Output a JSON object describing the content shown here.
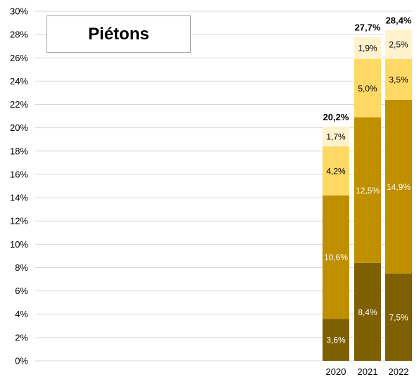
{
  "chart_data": {
    "type": "bar",
    "stacked": true,
    "title": "Piétons",
    "categories": [
      "2020",
      "2021",
      "2022"
    ],
    "series": [
      {
        "values": [
          3.6,
          8.4,
          7.5
        ],
        "labels": [
          "3,6%",
          "8,4%",
          "7,5%"
        ],
        "color": "#7f6000",
        "label_color": "#ffffff"
      },
      {
        "values": [
          10.6,
          12.5,
          14.9
        ],
        "labels": [
          "10,6%",
          "12,5%",
          "14,9%"
        ],
        "color": "#bf8f00",
        "label_color": "#ffffff"
      },
      {
        "values": [
          4.2,
          5.0,
          3.5
        ],
        "labels": [
          "4,2%",
          "5,0%",
          "3,5%"
        ],
        "color": "#ffd966",
        "label_color": "#000000"
      },
      {
        "values": [
          1.7,
          1.9,
          2.5
        ],
        "labels": [
          "1,7%",
          "1,9%",
          "2,5%"
        ],
        "color": "#fff2cc",
        "label_color": "#000000"
      }
    ],
    "totals": [
      "20,2%",
      "27,7%",
      "28,4%"
    ],
    "ylim": [
      0,
      30
    ],
    "yticks": [
      "0%",
      "2%",
      "4%",
      "6%",
      "8%",
      "10%",
      "12%",
      "14%",
      "16%",
      "18%",
      "20%",
      "22%",
      "24%",
      "26%",
      "28%",
      "30%"
    ],
    "grid": true,
    "xlabel": "",
    "ylabel": ""
  }
}
